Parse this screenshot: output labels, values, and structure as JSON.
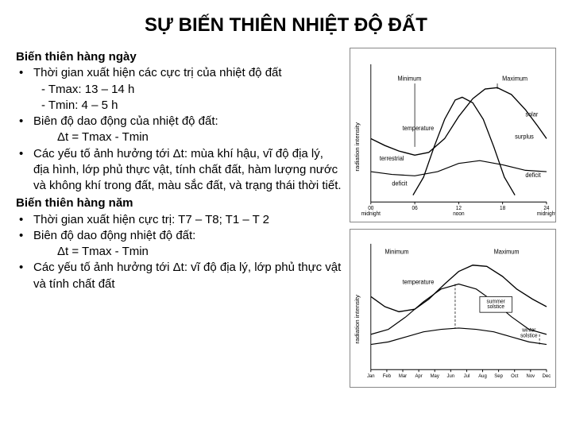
{
  "title": "SỰ BIẾN THIÊN NHIỆT ĐỘ ĐẤT",
  "daily": {
    "heading": "Biến thiên hàng ngày",
    "b1": "Thời gian xuất hiện các cực trị của nhiệt độ đất",
    "b1a": "- Tmax: 13 – 14 h",
    "b1b": "- Tmin:   4 – 5 h",
    "b2": "Biên độ dao động của nhiệt độ đất:",
    "b2a": "Δt = Tmax - Tmin",
    "b3": "Các yếu tố ảnh hưởng tới Δt: mùa khí hậu, vĩ độ địa lý, địa hình, lớp phủ thực vật, tính chất đất, hàm lượng nước và không khí trong đất, màu sắc đất, và trạng thái thời tiết."
  },
  "yearly": {
    "heading": "Biến thiên hàng năm",
    "b1": "Thời gian xuất hiện cực trị: T7 – T8; T1 – T 2",
    "b2": "Biên độ dao động nhiệt độ đất:",
    "b2a": "Δt = Tmax - Tmin",
    "b3": "Các yếu tố ảnh hưởng tới Δt: vĩ độ địa lý, lớp phủ thực vật và tính chất đất"
  },
  "chart1": {
    "labels": {
      "minimum": "Minimum",
      "maximum": "Maximum",
      "temperature": "temperature",
      "solar": "solar",
      "surplus": "surplus",
      "terrestrial": "terrestrial",
      "deficit_left": "deficit",
      "deficit_right": "deficit",
      "xaxis_left": "00\nmidnight",
      "xaxis_06": "06",
      "xaxis_noon": "12\nnoon",
      "xaxis_18": "18",
      "xaxis_right": "24\nmidnight",
      "yaxis": "radiation intensity"
    },
    "curves": {
      "temperature": {
        "color": "#000000",
        "width": 1.4,
        "points": [
          [
            0,
            0.46
          ],
          [
            0.08,
            0.41
          ],
          [
            0.16,
            0.37
          ],
          [
            0.25,
            0.34
          ],
          [
            0.33,
            0.36
          ],
          [
            0.42,
            0.46
          ],
          [
            0.5,
            0.62
          ],
          [
            0.58,
            0.75
          ],
          [
            0.65,
            0.82
          ],
          [
            0.72,
            0.83
          ],
          [
            0.8,
            0.78
          ],
          [
            0.88,
            0.67
          ],
          [
            0.95,
            0.55
          ],
          [
            1,
            0.46
          ]
        ]
      },
      "solar": {
        "color": "#000000",
        "width": 1.4,
        "points": [
          [
            0.24,
            0.05
          ],
          [
            0.3,
            0.18
          ],
          [
            0.36,
            0.4
          ],
          [
            0.42,
            0.6
          ],
          [
            0.48,
            0.74
          ],
          [
            0.52,
            0.76
          ],
          [
            0.58,
            0.72
          ],
          [
            0.64,
            0.6
          ],
          [
            0.7,
            0.4
          ],
          [
            0.76,
            0.18
          ],
          [
            0.82,
            0.05
          ]
        ]
      },
      "terrestrial": {
        "color": "#000000",
        "width": 1.2,
        "points": [
          [
            0,
            0.22
          ],
          [
            0.12,
            0.2
          ],
          [
            0.25,
            0.19
          ],
          [
            0.38,
            0.22
          ],
          [
            0.5,
            0.28
          ],
          [
            0.62,
            0.3
          ],
          [
            0.75,
            0.27
          ],
          [
            0.88,
            0.23
          ],
          [
            1,
            0.22
          ]
        ]
      }
    },
    "background": "#ffffff",
    "grid_color": "#bbbbbb"
  },
  "chart2": {
    "labels": {
      "minimum": "Minimum",
      "maximum": "Maximum",
      "temperature": "temperature",
      "summer_solstice": "summer\nsolstice",
      "winter_solstice": "winter\nsolstice",
      "yaxis": "radiation intensity",
      "months": [
        "Jan",
        "Feb",
        "Mar",
        "Apr",
        "May",
        "Jun",
        "Jul",
        "Aug",
        "Sep",
        "Oct",
        "Nov",
        "Dec"
      ]
    },
    "curves": {
      "temperature": {
        "color": "#000000",
        "width": 1.4,
        "points": [
          [
            0,
            0.58
          ],
          [
            0.08,
            0.5
          ],
          [
            0.16,
            0.46
          ],
          [
            0.25,
            0.48
          ],
          [
            0.33,
            0.56
          ],
          [
            0.42,
            0.68
          ],
          [
            0.5,
            0.78
          ],
          [
            0.58,
            0.83
          ],
          [
            0.66,
            0.82
          ],
          [
            0.75,
            0.74
          ],
          [
            0.83,
            0.64
          ],
          [
            0.92,
            0.56
          ],
          [
            1,
            0.5
          ]
        ]
      },
      "radiation_upper": {
        "color": "#000000",
        "width": 1.2,
        "points": [
          [
            0,
            0.28
          ],
          [
            0.1,
            0.32
          ],
          [
            0.2,
            0.42
          ],
          [
            0.3,
            0.54
          ],
          [
            0.4,
            0.64
          ],
          [
            0.5,
            0.68
          ],
          [
            0.6,
            0.64
          ],
          [
            0.7,
            0.54
          ],
          [
            0.8,
            0.42
          ],
          [
            0.9,
            0.32
          ],
          [
            1,
            0.28
          ]
        ]
      },
      "radiation_lower": {
        "color": "#000000",
        "width": 1.2,
        "points": [
          [
            0,
            0.2
          ],
          [
            0.1,
            0.22
          ],
          [
            0.2,
            0.26
          ],
          [
            0.3,
            0.3
          ],
          [
            0.4,
            0.32
          ],
          [
            0.5,
            0.33
          ],
          [
            0.6,
            0.32
          ],
          [
            0.7,
            0.3
          ],
          [
            0.8,
            0.26
          ],
          [
            0.9,
            0.22
          ],
          [
            1,
            0.2
          ]
        ]
      }
    },
    "background": "#ffffff",
    "grid_color": "#bbbbbb"
  }
}
